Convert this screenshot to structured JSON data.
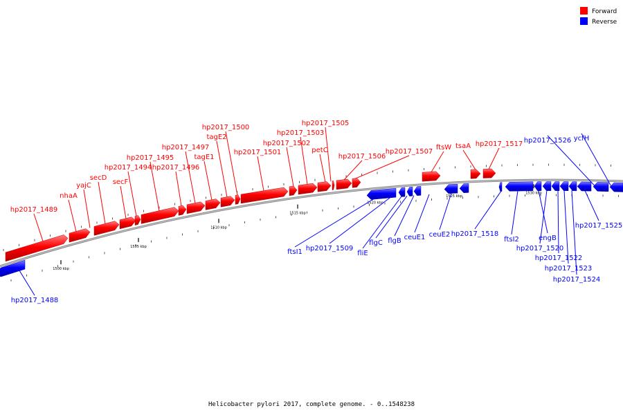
{
  "title": "Helicobacter pylori 2017, complete genome. - 0..1548238",
  "legend": [
    {
      "label": "Forward",
      "color": "#ff0000"
    },
    {
      "label": "Reverse",
      "color": "#0000ff"
    }
  ],
  "colors": {
    "forward": "#ff0000",
    "reverse": "#0000ff",
    "backbone": "#808080"
  },
  "ticks": [
    "1500 kbp",
    "1505 kbp",
    "1510 kbp",
    "1515 kbp",
    "1520 kbp",
    "1525 kbp",
    "1530 kbp"
  ],
  "forward_labels": [
    "hp2017_1489",
    "nhaA",
    "yajC",
    "secD",
    "secF",
    "hp2017_1494",
    "hp2017_1495",
    "hp2017_1496",
    "hp2017_1497",
    "tagE1",
    "tagE2",
    "hp2017_1500",
    "hp2017_1501",
    "hp2017_1502",
    "hp2017_1503",
    "petC",
    "hp2017_1505",
    "hp2017_1506",
    "hp2017_1507",
    "ftsW",
    "tsaA",
    "hp2017_1517"
  ],
  "reverse_labels": [
    "hp2017_1488",
    "ftsI1",
    "hp2017_1509",
    "fliE",
    "flgC",
    "flgB",
    "ceuE1",
    "ceuE2",
    "hp2017_1518",
    "ftsI2",
    "engB",
    "hp2017_1520",
    "hp2017_1522",
    "hp2017_1523",
    "hp2017_1524",
    "hp2017_1525",
    "hp2017_1526",
    "ycfH"
  ]
}
